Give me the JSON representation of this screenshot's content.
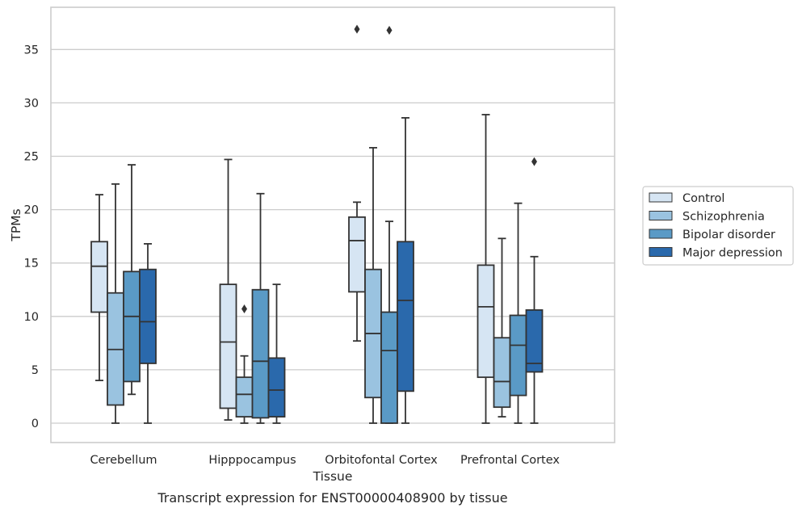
{
  "chart_data": {
    "type": "box",
    "xlabel": "Tissue",
    "ylabel": "TPMs",
    "caption": "Transcript expression for ENST00000408900 by tissue",
    "ylim": [
      -1.8,
      38.9
    ],
    "yticks": [
      0,
      5,
      10,
      15,
      20,
      25,
      30,
      35
    ],
    "grid": "horizontal",
    "legend_position": "right",
    "categories": [
      "Cerebellum",
      "Hipppocampus",
      "Orbitofontal Cortex",
      "Prefrontal Cortex"
    ],
    "series": [
      {
        "name": "Control",
        "color": "#d6e5f3",
        "boxes": [
          {
            "whisker_low": 4.0,
            "q1": 10.4,
            "median": 14.7,
            "q3": 17.0,
            "whisker_high": 21.4,
            "outliers": []
          },
          {
            "whisker_low": 0.3,
            "q1": 1.4,
            "median": 7.6,
            "q3": 13.0,
            "whisker_high": 24.7,
            "outliers": []
          },
          {
            "whisker_low": 7.7,
            "q1": 12.3,
            "median": 17.1,
            "q3": 19.3,
            "whisker_high": 20.7,
            "outliers": [
              36.9
            ]
          },
          {
            "whisker_low": 0.0,
            "q1": 4.3,
            "median": 10.9,
            "q3": 14.8,
            "whisker_high": 28.9,
            "outliers": []
          }
        ]
      },
      {
        "name": "Schizophrenia",
        "color": "#9ac3e0",
        "boxes": [
          {
            "whisker_low": 0.0,
            "q1": 1.7,
            "median": 6.9,
            "q3": 12.2,
            "whisker_high": 22.4,
            "outliers": []
          },
          {
            "whisker_low": 0.0,
            "q1": 0.6,
            "median": 2.7,
            "q3": 4.3,
            "whisker_high": 6.3,
            "outliers": [
              10.7
            ]
          },
          {
            "whisker_low": 0.0,
            "q1": 2.4,
            "median": 8.4,
            "q3": 14.4,
            "whisker_high": 25.8,
            "outliers": []
          },
          {
            "whisker_low": 0.6,
            "q1": 1.5,
            "median": 3.9,
            "q3": 8.0,
            "whisker_high": 17.3,
            "outliers": []
          }
        ]
      },
      {
        "name": "Bipolar disorder",
        "color": "#5a9ac6",
        "boxes": [
          {
            "whisker_low": 2.7,
            "q1": 3.9,
            "median": 10.0,
            "q3": 14.2,
            "whisker_high": 24.2,
            "outliers": []
          },
          {
            "whisker_low": 0.0,
            "q1": 0.5,
            "median": 5.8,
            "q3": 12.5,
            "whisker_high": 21.5,
            "outliers": []
          },
          {
            "whisker_low": 0.0,
            "q1": 0.0,
            "median": 6.8,
            "q3": 10.4,
            "whisker_high": 18.9,
            "outliers": [
              36.8
            ]
          },
          {
            "whisker_low": 0.0,
            "q1": 2.6,
            "median": 7.3,
            "q3": 10.1,
            "whisker_high": 20.6,
            "outliers": []
          }
        ]
      },
      {
        "name": "Major depression",
        "color": "#2a69ac",
        "boxes": [
          {
            "whisker_low": 0.0,
            "q1": 5.6,
            "median": 9.5,
            "q3": 14.4,
            "whisker_high": 16.8,
            "outliers": []
          },
          {
            "whisker_low": 0.0,
            "q1": 0.6,
            "median": 3.1,
            "q3": 6.1,
            "whisker_high": 13.0,
            "outliers": []
          },
          {
            "whisker_low": 0.0,
            "q1": 3.0,
            "median": 11.5,
            "q3": 17.0,
            "whisker_high": 28.6,
            "outliers": []
          },
          {
            "whisker_low": 0.0,
            "q1": 4.8,
            "median": 5.6,
            "q3": 10.6,
            "whisker_high": 15.6,
            "outliers": [
              24.5
            ]
          }
        ]
      }
    ]
  }
}
